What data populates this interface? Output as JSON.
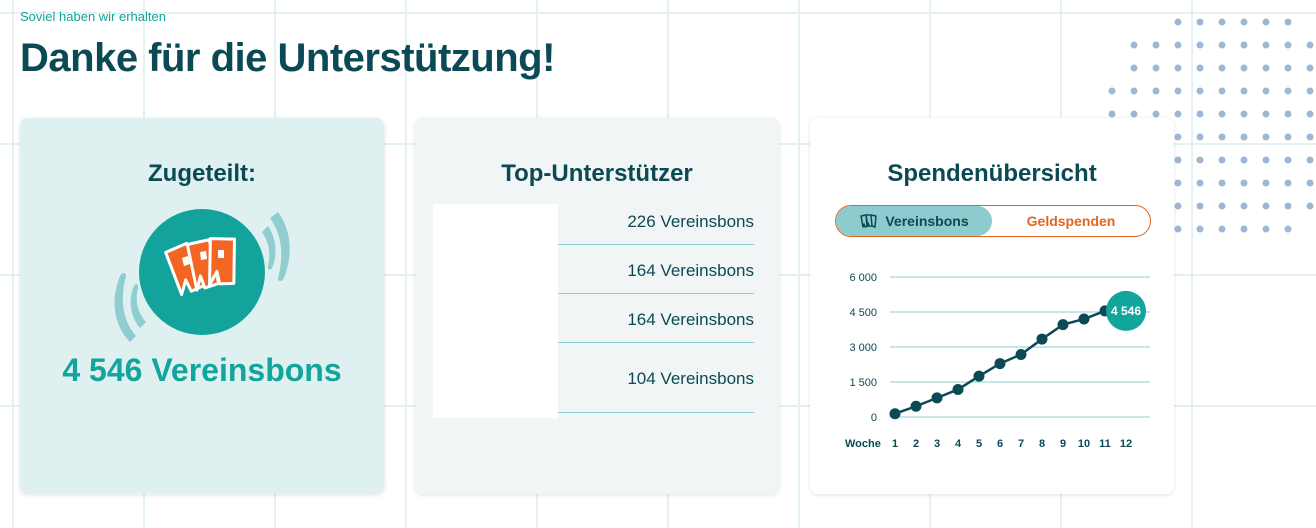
{
  "header": {
    "kicker": "Soviel haben wir erhalten",
    "title": "Danke für die Unterstützung!"
  },
  "allocated": {
    "title": "Zugeteilt:",
    "total": "4 546 Vereinsbons",
    "icon": "vouchers-icon"
  },
  "top_supporters": {
    "title": "Top-Unterstützer",
    "rows": [
      {
        "value": "226 Vereinsbons"
      },
      {
        "value": "164 Vereinsbons"
      },
      {
        "value": "164 Vereinsbons"
      },
      {
        "value": "104 Vereinsbons"
      }
    ]
  },
  "overview": {
    "title": "Spendenübersicht",
    "tabs": {
      "vouchers": "Vereinsbons",
      "money": "Geldspenden"
    }
  },
  "colors": {
    "teal": "#12a59d",
    "dark": "#0b4a55",
    "orange": "#e2651f",
    "light_teal": "#def1f0"
  },
  "chart_data": {
    "type": "line",
    "x_label": "Woche",
    "x": [
      1,
      2,
      3,
      4,
      5,
      6,
      7,
      8,
      9,
      10,
      11
    ],
    "categories": [
      "1",
      "2",
      "3",
      "4",
      "5",
      "6",
      "7",
      "8",
      "9",
      "10",
      "11",
      "12"
    ],
    "y_ticks": [
      "6 000",
      "4 500",
      "3 000",
      "1 500",
      "0"
    ],
    "values": [
      140,
      460,
      820,
      1180,
      1750,
      2290,
      2680,
      3340,
      3960,
      4200,
      4546
    ],
    "ylim": [
      0,
      6000
    ],
    "last_value_label": "4 546",
    "grid": true
  }
}
